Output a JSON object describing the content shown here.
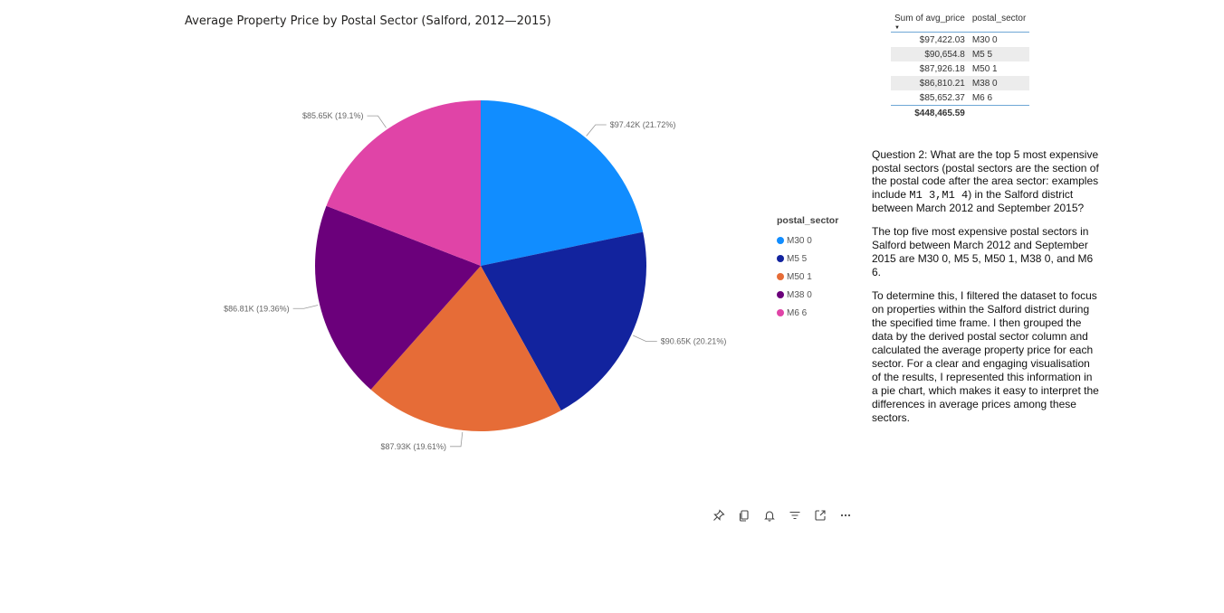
{
  "chart_data": {
    "type": "pie",
    "title": "Average Property Price by Postal Sector (Salford, 2012—2015)",
    "legend_title": "postal_sector",
    "legend_position": "right",
    "categories": [
      "M30 0",
      "M5 5",
      "M50 1",
      "M38 0",
      "M6 6"
    ],
    "values": [
      97422.03,
      90654.8,
      87926.18,
      86810.21,
      85652.37
    ],
    "percentages": [
      21.72,
      20.21,
      19.61,
      19.36,
      19.1
    ],
    "data_labels": [
      "$97.42K (21.72%)",
      "$90.65K (20.21%)",
      "$87.93K (19.61%)",
      "$86.81K (19.36%)",
      "$85.65K (19.1%)"
    ],
    "colors": [
      "#118dff",
      "#12239e",
      "#e66c37",
      "#6b007b",
      "#e044a7"
    ]
  },
  "table": {
    "headers": [
      "Sum of avg_price",
      "postal_sector"
    ],
    "sort_indicator": "▼",
    "rows": [
      [
        "$97,422.03",
        "M30 0"
      ],
      [
        "$90,654.8",
        "M5 5"
      ],
      [
        "$87,926.18",
        "M50 1"
      ],
      [
        "$86,810.21",
        "M38 0"
      ],
      [
        "$85,652.37",
        "M6 6"
      ]
    ],
    "total": "$448,465.59"
  },
  "text": {
    "question_part1": "Question 2: What are the top 5 most expensive postal sectors (postal sectors are the section of the postal code after the area sector: examples include ",
    "question_code": "M1 3,M1 4",
    "question_part2": ") in the Salford district between March 2012 and September 2015?",
    "answer": "The top five most expensive postal sectors in Salford between March 2012 and September 2015 are M30 0, M5 5, M50 1, M38 0, and M6 6.",
    "method": "To determine this, I filtered the dataset to focus on properties within the Salford district during the specified time frame. I then grouped the data by the derived postal sector column and calculated the average property price for each sector. For a clear and engaging visualisation of the results, I represented this information in a pie chart, which makes it easy to interpret the differences in average prices among these sectors."
  },
  "toolbar": {
    "icons": [
      "pin-icon",
      "copy-icon",
      "bell-icon",
      "filter-icon",
      "focus-mode-icon",
      "more-options-icon"
    ]
  }
}
